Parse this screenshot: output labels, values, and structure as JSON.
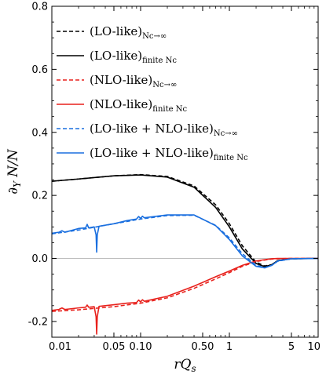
{
  "chart_data": {
    "type": "line",
    "xlabel": "rQ_s",
    "ylabel": "∂_Y N/N",
    "xscale": "log",
    "xlim": [
      0.01,
      10
    ],
    "ylim": [
      -0.25,
      0.8
    ],
    "xticks": [
      {
        "value": 0.01,
        "label": "0.01"
      },
      {
        "value": 0.05,
        "label": "0.05"
      },
      {
        "value": 0.1,
        "label": "0.10"
      },
      {
        "value": 0.5,
        "label": "0.50"
      },
      {
        "value": 1,
        "label": "1"
      },
      {
        "value": 5,
        "label": "5"
      },
      {
        "value": 10,
        "label": "10"
      }
    ],
    "yticks": [
      {
        "value": -0.2,
        "label": "-0.2"
      },
      {
        "value": 0.0,
        "label": "0.0"
      },
      {
        "value": 0.2,
        "label": "0.2"
      },
      {
        "value": 0.4,
        "label": "0.4"
      },
      {
        "value": 0.6,
        "label": "0.6"
      },
      {
        "value": 0.8,
        "label": "0.8"
      }
    ],
    "zero_line": true,
    "grid": false,
    "legend_position": "top-left",
    "series": [
      {
        "name": "(LO-like)",
        "subscript": "N_c→∞",
        "color": "#000000",
        "dash": true,
        "x": [
          0.01,
          0.02,
          0.05,
          0.1,
          0.2,
          0.4,
          0.7,
          1,
          1.4,
          2,
          2.5,
          3,
          3.5,
          5,
          10
        ],
        "y": [
          0.245,
          0.252,
          0.262,
          0.266,
          0.26,
          0.23,
          0.17,
          0.11,
          0.04,
          -0.012,
          -0.024,
          -0.02,
          -0.008,
          -0.001,
          0.0
        ]
      },
      {
        "name": "(LO-like)",
        "subscript": "finite N_c",
        "color": "#000000",
        "dash": false,
        "x": [
          0.01,
          0.02,
          0.05,
          0.1,
          0.2,
          0.4,
          0.7,
          1,
          1.4,
          2,
          2.5,
          3,
          3.5,
          5,
          10
        ],
        "y": [
          0.245,
          0.252,
          0.262,
          0.265,
          0.258,
          0.226,
          0.162,
          0.1,
          0.03,
          -0.016,
          -0.026,
          -0.02,
          -0.007,
          -0.001,
          0.0
        ]
      },
      {
        "name": "(NLO-like)",
        "subscript": "N_c→∞",
        "color": "#e8211c",
        "dash": true,
        "x": [
          0.01,
          0.02,
          0.05,
          0.1,
          0.2,
          0.4,
          0.7,
          1,
          1.4,
          2,
          2.5,
          3,
          3.5,
          5,
          10
        ],
        "y": [
          -0.168,
          -0.163,
          -0.153,
          -0.142,
          -0.125,
          -0.095,
          -0.065,
          -0.045,
          -0.025,
          -0.01,
          -0.005,
          -0.002,
          -0.001,
          0.0,
          0.0
        ]
      },
      {
        "name": "(NLO-like)",
        "subscript": "finite N_c",
        "color": "#e8211c",
        "dash": false,
        "x": [
          0.01,
          0.012,
          0.013,
          0.014,
          0.02,
          0.024,
          0.025,
          0.026,
          0.03,
          0.0315,
          0.032,
          0.0325,
          0.034,
          0.05,
          0.07,
          0.09,
          0.095,
          0.1,
          0.105,
          0.11,
          0.2,
          0.4,
          0.7,
          1,
          1.4,
          2,
          2.5,
          3,
          3.5,
          5,
          10
        ],
        "y": [
          -0.165,
          -0.162,
          -0.157,
          -0.162,
          -0.157,
          -0.155,
          -0.148,
          -0.155,
          -0.153,
          -0.185,
          -0.24,
          -0.185,
          -0.152,
          -0.147,
          -0.142,
          -0.14,
          -0.132,
          -0.138,
          -0.131,
          -0.136,
          -0.12,
          -0.088,
          -0.058,
          -0.04,
          -0.022,
          -0.008,
          -0.004,
          -0.001,
          0.0,
          0.0,
          0.0
        ]
      },
      {
        "name": "(LO-like + NLO-like)",
        "subscript": "N_c→∞",
        "color": "#1a6fdf",
        "dash": true,
        "x": [
          0.01,
          0.02,
          0.05,
          0.1,
          0.2,
          0.4,
          0.7,
          1,
          1.4,
          2,
          2.5,
          3,
          3.5,
          5,
          10
        ],
        "y": [
          0.078,
          0.09,
          0.11,
          0.125,
          0.136,
          0.137,
          0.105,
          0.065,
          0.015,
          -0.022,
          -0.029,
          -0.022,
          -0.009,
          -0.001,
          0.0
        ]
      },
      {
        "name": "(LO-like + NLO-like)",
        "subscript": "finite N_c",
        "color": "#1a6fdf",
        "dash": false,
        "x": [
          0.01,
          0.012,
          0.013,
          0.014,
          0.02,
          0.024,
          0.025,
          0.026,
          0.03,
          0.0315,
          0.032,
          0.0325,
          0.034,
          0.05,
          0.07,
          0.09,
          0.095,
          0.1,
          0.105,
          0.11,
          0.2,
          0.4,
          0.7,
          1,
          1.4,
          2,
          2.5,
          3,
          3.5,
          5,
          10
        ],
        "y": [
          0.08,
          0.083,
          0.088,
          0.083,
          0.095,
          0.097,
          0.108,
          0.097,
          0.1,
          0.075,
          0.02,
          0.075,
          0.102,
          0.11,
          0.12,
          0.125,
          0.133,
          0.127,
          0.134,
          0.129,
          0.138,
          0.138,
          0.104,
          0.06,
          0.008,
          -0.025,
          -0.03,
          -0.022,
          -0.008,
          -0.001,
          0.0
        ]
      }
    ]
  }
}
